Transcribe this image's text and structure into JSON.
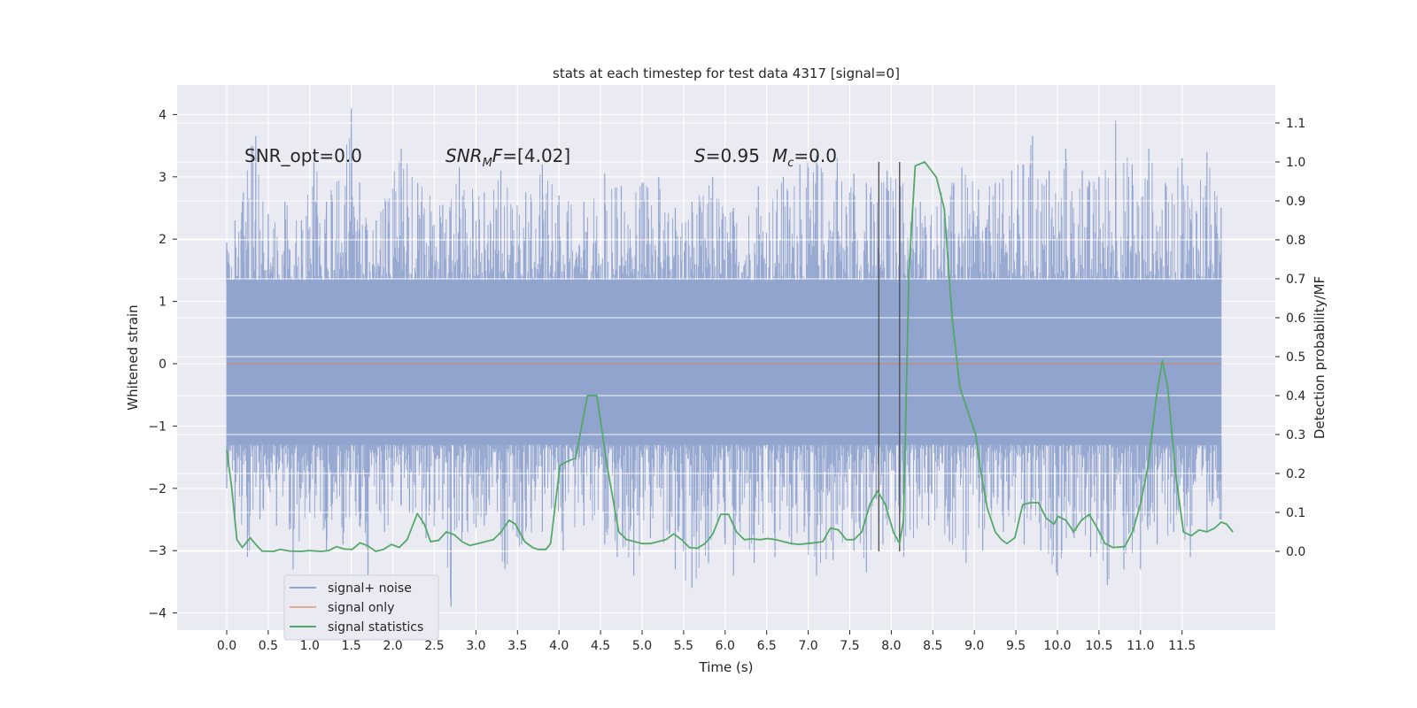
{
  "chart_data": {
    "type": "line",
    "title": "stats at each timestep for test data 4317 [signal=0]",
    "xlabel": "Time (s)",
    "ylabel_left": "Whitened strain",
    "ylabel_right": "Detection probability/MF",
    "xlim": [
      -0.58,
      12.6
    ],
    "ylim_left": [
      -4.4,
      4.45
    ],
    "ylim_right": [
      0.0,
      1.0
    ],
    "x_ticks": [
      0.0,
      0.5,
      1.0,
      1.5,
      2.0,
      2.5,
      3.0,
      3.5,
      4.0,
      4.5,
      5.0,
      5.5,
      6.0,
      6.5,
      7.0,
      7.5,
      8.0,
      8.5,
      9.0,
      9.5,
      10.0,
      10.5,
      11.0,
      11.5
    ],
    "x_tick_labels": [
      "0.0",
      "0.5",
      "1.0",
      "1.5",
      "2.0",
      "2.5",
      "3.0",
      "3.5",
      "4.0",
      "4.5",
      "5.0",
      "5.5",
      "6.0",
      "6.5",
      "7.0",
      "7.5",
      "8.0",
      "8.5",
      "9.0",
      "9.5",
      "10.0",
      "10.5",
      "11.0",
      "11.5"
    ],
    "y_left_ticks": [
      4,
      3,
      2,
      1,
      0,
      -1,
      -2,
      -3,
      -4
    ],
    "y_left_tick_labels": [
      "4",
      "3",
      "2",
      "1",
      "0",
      "−1",
      "−2",
      "−3",
      "−4"
    ],
    "y_right_ticks": [
      1.1,
      1.0,
      0.9,
      0.8,
      0.7,
      0.6,
      0.5,
      0.4,
      0.3,
      0.2,
      0.1,
      0.0
    ],
    "y_right_tick_labels": [
      "1.1",
      "1.0",
      "0.9",
      "0.8",
      "0.7",
      "0.6",
      "0.5",
      "0.4",
      "0.3",
      "0.2",
      "0.1",
      "0.0"
    ],
    "grid": true,
    "legend_position": "lower-left",
    "colors": {
      "background": "#eaeaf2",
      "grid": "#ffffff",
      "noise": "#8fa3cd",
      "signal_only": "#dd8452",
      "statistics": "#55a868",
      "marker_line": "#4d4d4d"
    },
    "series": [
      {
        "name": "signal+ noise",
        "axis": "left",
        "description_band": "dense whitened noise, roughly -1.8 to 1.9 typical with spikes to about 4.1 and -3.9",
        "t_range": [
          0.0,
          11.97
        ],
        "upper_envelope": [
          [
            0.0,
            1.95
          ],
          [
            0.1,
            2.3
          ],
          [
            0.2,
            2.75
          ],
          [
            0.3,
            3.5
          ],
          [
            0.35,
            3.65
          ],
          [
            0.5,
            2.4
          ],
          [
            0.7,
            2.6
          ],
          [
            0.9,
            2.3
          ],
          [
            1.05,
            3.3
          ],
          [
            1.2,
            2.6
          ],
          [
            1.5,
            4.1
          ],
          [
            1.6,
            2.9
          ],
          [
            1.8,
            2.3
          ],
          [
            2.1,
            3.45
          ],
          [
            2.3,
            2.9
          ],
          [
            2.6,
            2.55
          ],
          [
            2.8,
            3.15
          ],
          [
            3.1,
            2.75
          ],
          [
            3.3,
            3.1
          ],
          [
            3.6,
            2.75
          ],
          [
            3.8,
            3.2
          ],
          [
            4.0,
            2.7
          ],
          [
            4.3,
            2.6
          ],
          [
            4.55,
            3.05
          ],
          [
            4.75,
            2.85
          ],
          [
            5.0,
            2.9
          ],
          [
            5.2,
            3.0
          ],
          [
            5.4,
            2.5
          ],
          [
            5.6,
            2.6
          ],
          [
            5.85,
            3.0
          ],
          [
            6.1,
            2.5
          ],
          [
            6.4,
            2.85
          ],
          [
            6.7,
            3.0
          ],
          [
            6.9,
            3.2
          ],
          [
            7.1,
            3.35
          ],
          [
            7.35,
            3.3
          ],
          [
            7.55,
            3.05
          ],
          [
            7.7,
            2.9
          ],
          [
            7.95,
            3.1
          ],
          [
            8.1,
            3.2
          ],
          [
            8.35,
            2.6
          ],
          [
            8.6,
            2.75
          ],
          [
            8.85,
            3.15
          ],
          [
            9.05,
            2.8
          ],
          [
            9.25,
            2.9
          ],
          [
            9.45,
            3.1
          ],
          [
            9.7,
            3.65
          ],
          [
            9.9,
            3.1
          ],
          [
            10.1,
            3.45
          ],
          [
            10.3,
            3.1
          ],
          [
            10.5,
            3.0
          ],
          [
            10.7,
            3.9
          ],
          [
            10.9,
            3.2
          ],
          [
            11.1,
            3.45
          ],
          [
            11.3,
            2.9
          ],
          [
            11.5,
            3.3
          ],
          [
            11.8,
            3.4
          ],
          [
            11.97,
            2.5
          ]
        ],
        "lower_envelope": [
          [
            0.0,
            -2.0
          ],
          [
            0.1,
            -2.6
          ],
          [
            0.25,
            -3.1
          ],
          [
            0.4,
            -2.5
          ],
          [
            0.6,
            -2.6
          ],
          [
            0.8,
            -3.3
          ],
          [
            1.0,
            -2.4
          ],
          [
            1.2,
            -3.0
          ],
          [
            1.4,
            -2.9
          ],
          [
            1.6,
            -2.6
          ],
          [
            1.7,
            -3.5
          ],
          [
            1.9,
            -2.7
          ],
          [
            2.2,
            -2.4
          ],
          [
            2.4,
            -2.8
          ],
          [
            2.6,
            -2.5
          ],
          [
            2.7,
            -3.9
          ],
          [
            2.9,
            -2.7
          ],
          [
            3.1,
            -2.6
          ],
          [
            3.35,
            -3.3
          ],
          [
            3.55,
            -2.9
          ],
          [
            3.8,
            -2.7
          ],
          [
            4.05,
            -3.0
          ],
          [
            4.3,
            -2.6
          ],
          [
            4.55,
            -2.9
          ],
          [
            4.7,
            -3.1
          ],
          [
            4.9,
            -3.4
          ],
          [
            5.1,
            -2.8
          ],
          [
            5.4,
            -3.3
          ],
          [
            5.6,
            -3.6
          ],
          [
            5.8,
            -3.2
          ],
          [
            6.0,
            -2.9
          ],
          [
            6.1,
            -3.4
          ],
          [
            6.35,
            -3.2
          ],
          [
            6.6,
            -3.1
          ],
          [
            6.8,
            -2.9
          ],
          [
            7.1,
            -3.4
          ],
          [
            7.3,
            -3.15
          ],
          [
            7.55,
            -3.0
          ],
          [
            7.7,
            -3.35
          ],
          [
            7.9,
            -2.9
          ],
          [
            8.15,
            -3.1
          ],
          [
            8.45,
            -2.6
          ],
          [
            8.7,
            -2.85
          ],
          [
            8.9,
            -3.2
          ],
          [
            9.1,
            -3.0
          ],
          [
            9.35,
            -2.7
          ],
          [
            9.6,
            -2.9
          ],
          [
            9.8,
            -3.0
          ],
          [
            10.0,
            -3.4
          ],
          [
            10.2,
            -2.8
          ],
          [
            10.4,
            -3.1
          ],
          [
            10.6,
            -3.55
          ],
          [
            10.8,
            -3.3
          ],
          [
            11.0,
            -3.3
          ],
          [
            11.2,
            -2.9
          ],
          [
            11.4,
            -2.7
          ],
          [
            11.6,
            -3.1
          ],
          [
            11.8,
            -2.7
          ],
          [
            11.97,
            -2.5
          ]
        ]
      },
      {
        "name": "signal only",
        "axis": "left",
        "x": [
          0.0,
          11.97
        ],
        "y": [
          0.0,
          0.0
        ]
      },
      {
        "name": "signal statistics",
        "axis": "right",
        "points": [
          [
            0.0,
            0.26
          ],
          [
            0.06,
            0.17
          ],
          [
            0.13,
            0.03
          ],
          [
            0.2,
            0.01
          ],
          [
            0.3,
            0.035
          ],
          [
            0.36,
            0.02
          ],
          [
            0.45,
            0.001
          ],
          [
            0.6,
            0.0
          ],
          [
            0.68,
            0.005
          ],
          [
            0.8,
            0.001
          ],
          [
            0.95,
            0.0
          ],
          [
            1.05,
            0.002
          ],
          [
            1.2,
            0.0
          ],
          [
            1.3,
            0.002
          ],
          [
            1.4,
            0.012
          ],
          [
            1.5,
            0.006
          ],
          [
            1.6,
            0.005
          ],
          [
            1.7,
            0.022
          ],
          [
            1.8,
            0.014
          ],
          [
            1.9,
            0.0
          ],
          [
            2.0,
            0.005
          ],
          [
            2.1,
            0.018
          ],
          [
            2.2,
            0.01
          ],
          [
            2.3,
            0.03
          ],
          [
            2.43,
            0.097
          ],
          [
            2.52,
            0.07
          ],
          [
            2.6,
            0.025
          ],
          [
            2.7,
            0.028
          ],
          [
            2.8,
            0.05
          ],
          [
            2.9,
            0.043
          ],
          [
            3.0,
            0.025
          ],
          [
            3.1,
            0.015
          ],
          [
            3.2,
            0.02
          ],
          [
            3.3,
            0.025
          ],
          [
            3.4,
            0.03
          ],
          [
            3.5,
            0.05
          ],
          [
            3.6,
            0.08
          ],
          [
            3.68,
            0.07
          ],
          [
            3.8,
            0.025
          ],
          [
            3.9,
            0.01
          ],
          [
            3.97,
            0.005
          ],
          [
            4.07,
            0.005
          ],
          [
            4.13,
            0.02
          ],
          [
            4.25,
            0.22
          ],
          [
            4.33,
            0.23
          ],
          [
            4.45,
            0.24
          ],
          [
            4.6,
            0.4
          ],
          [
            4.72,
            0.4
          ],
          [
            4.85,
            0.22
          ],
          [
            5.0,
            0.05
          ],
          [
            5.1,
            0.03
          ],
          [
            5.2,
            0.025
          ],
          [
            5.3,
            0.02
          ],
          [
            5.4,
            0.02
          ],
          [
            5.5,
            0.025
          ],
          [
            5.6,
            0.03
          ],
          [
            5.7,
            0.045
          ],
          [
            5.8,
            0.03
          ],
          [
            5.9,
            0.01
          ],
          [
            6.0,
            0.008
          ],
          [
            6.1,
            0.02
          ],
          [
            6.2,
            0.045
          ],
          [
            6.3,
            0.095
          ],
          [
            6.4,
            0.095
          ],
          [
            6.5,
            0.05
          ],
          [
            6.6,
            0.03
          ],
          [
            6.7,
            0.032
          ],
          [
            6.8,
            0.03
          ],
          [
            6.9,
            0.033
          ],
          [
            7.0,
            0.03
          ],
          [
            7.1,
            0.025
          ],
          [
            7.2,
            0.02
          ],
          [
            7.3,
            0.018
          ],
          [
            7.4,
            0.02
          ],
          [
            7.5,
            0.022
          ],
          [
            7.6,
            0.025
          ],
          [
            7.7,
            0.06
          ],
          [
            7.8,
            0.055
          ],
          [
            7.9,
            0.03
          ],
          [
            8.0,
            0.03
          ],
          [
            8.1,
            0.05
          ],
          [
            8.2,
            0.12
          ],
          [
            8.3,
            0.155
          ],
          [
            8.4,
            0.12
          ],
          [
            8.5,
            0.05
          ],
          [
            8.58,
            0.02
          ],
          [
            8.63,
            0.08
          ],
          [
            8.7,
            0.72
          ],
          [
            8.78,
            0.99
          ],
          [
            8.9,
            1.0
          ],
          [
            9.05,
            0.96
          ],
          [
            9.15,
            0.88
          ],
          [
            9.25,
            0.6
          ],
          [
            9.35,
            0.42
          ],
          [
            9.45,
            0.36
          ],
          [
            9.55,
            0.3
          ],
          [
            9.62,
            0.2
          ],
          [
            9.7,
            0.11
          ],
          [
            9.8,
            0.05
          ],
          [
            9.88,
            0.03
          ],
          [
            9.95,
            0.02
          ],
          [
            10.05,
            0.035
          ],
          [
            10.15,
            0.12
          ],
          [
            10.25,
            0.125
          ],
          [
            10.35,
            0.125
          ],
          [
            10.45,
            0.085
          ],
          [
            10.55,
            0.07
          ],
          [
            10.6,
            0.09
          ],
          [
            10.7,
            0.08
          ],
          [
            10.8,
            0.05
          ],
          [
            10.9,
            0.08
          ],
          [
            11.0,
            0.095
          ],
          [
            11.1,
            0.06
          ],
          [
            11.2,
            0.02
          ],
          [
            11.3,
            0.01
          ],
          [
            11.45,
            0.012
          ],
          [
            11.55,
            0.05
          ],
          [
            11.65,
            0.12
          ],
          [
            11.75,
            0.22
          ],
          [
            11.85,
            0.39
          ],
          [
            11.93,
            0.49
          ],
          [
            12.0,
            0.42
          ],
          [
            12.1,
            0.2
          ],
          [
            12.2,
            0.05
          ],
          [
            12.3,
            0.04
          ],
          [
            12.4,
            0.055
          ],
          [
            12.5,
            0.05
          ],
          [
            12.6,
            0.06
          ],
          [
            12.68,
            0.075
          ],
          [
            12.75,
            0.07
          ],
          [
            12.83,
            0.05
          ]
        ]
      }
    ],
    "vertical_markers": [
      7.85,
      8.1
    ],
    "annotations": [
      {
        "text": "SNR_opt=0.0"
      },
      {
        "text": "SNR_MF=[4.02]",
        "main": "SNR",
        "sub": "M",
        "rest": "F=[4.02]"
      },
      {
        "text": "S=0.95   Mc=0.0",
        "s_main": "S",
        "s_rest": "=0.95",
        "m_main": "M",
        "m_sub": "c",
        "m_rest": "=0.0"
      }
    ]
  },
  "legend": {
    "items": [
      {
        "label": "signal+ noise",
        "color": "#8fa3cd"
      },
      {
        "label": "signal only",
        "color": "#dd8452"
      },
      {
        "label": "signal statistics",
        "color": "#55a868"
      }
    ]
  }
}
